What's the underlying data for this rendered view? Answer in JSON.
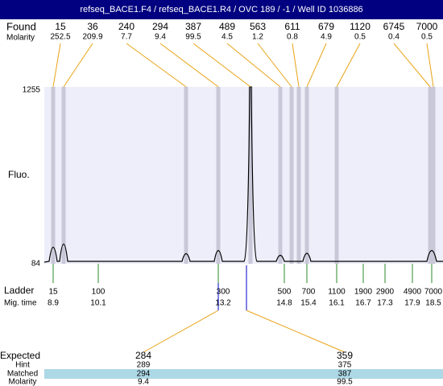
{
  "header": {
    "title": "refseq_BACE1.F4 / refseq_BACE1.R4 / OVC 189 / -1 / Well ID 1036886"
  },
  "found": {
    "label": "Found",
    "molarity_label": "Molarity",
    "peaks": [
      {
        "size": "15",
        "molarity": "252.5"
      },
      {
        "size": "36",
        "molarity": "209.9"
      },
      {
        "size": "240",
        "molarity": "7.7"
      },
      {
        "size": "294",
        "molarity": "9.4"
      },
      {
        "size": "387",
        "molarity": "99.5"
      },
      {
        "size": "489",
        "molarity": "4.5"
      },
      {
        "size": "563",
        "molarity": "1.2"
      },
      {
        "size": "611",
        "molarity": "0.8"
      },
      {
        "size": "679",
        "molarity": "4.9"
      },
      {
        "size": "1120",
        "molarity": "0.5"
      },
      {
        "size": "6745",
        "molarity": "0.4"
      },
      {
        "size": "7000",
        "molarity": "0.5"
      }
    ]
  },
  "plot": {
    "y_label": "Fluo.",
    "y_max": "1255",
    "y_min": "84"
  },
  "ladder": {
    "label": "Ladder",
    "time_label": "Mig. time",
    "markers": [
      {
        "size": "15",
        "time": "8.9"
      },
      {
        "size": "100",
        "time": "10.1"
      },
      {
        "size": "300",
        "time": "13.2"
      },
      {
        "size": "500",
        "time": "14.8"
      },
      {
        "size": "700",
        "time": "15.4"
      },
      {
        "size": "1100",
        "time": "16.1"
      },
      {
        "size": "1900",
        "time": "16.7"
      },
      {
        "size": "2900",
        "time": "17.3"
      },
      {
        "size": "4900",
        "time": "17.9"
      },
      {
        "size": "7000",
        "time": "18.5"
      }
    ]
  },
  "expected": {
    "labels": [
      "Expected",
      "Hint",
      "Matched",
      "Molarity"
    ],
    "columns": [
      {
        "expected": "284",
        "hint": "289",
        "matched": "294",
        "molarity": "9.4"
      },
      {
        "expected": "359",
        "hint": "375",
        "matched": "387",
        "molarity": "99.5"
      }
    ]
  }
}
